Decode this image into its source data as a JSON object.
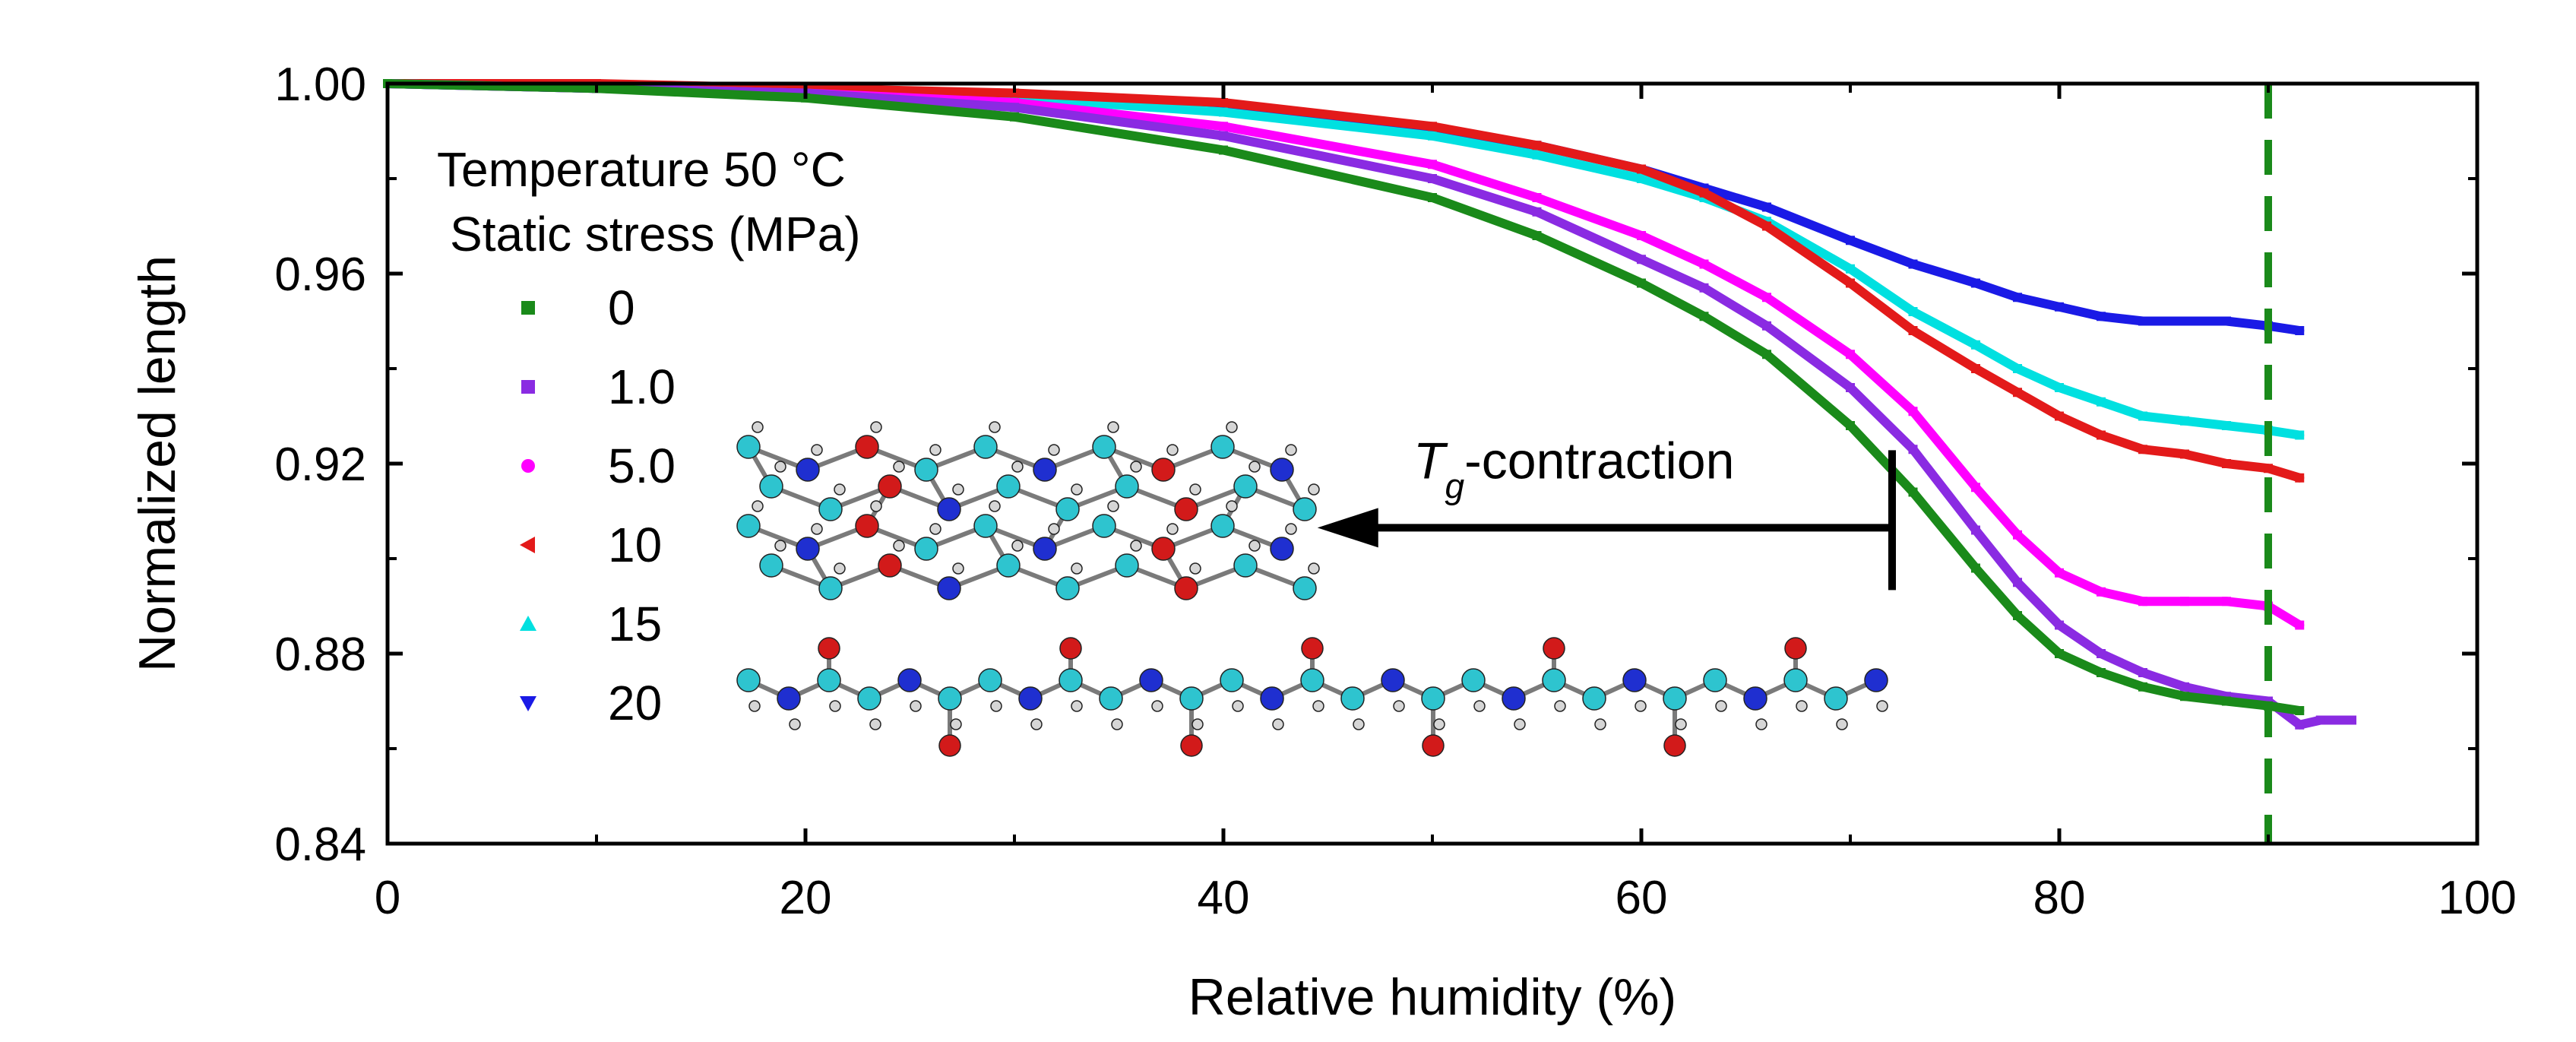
{
  "chart_data": {
    "type": "line",
    "xlabel": "Relative humidity (%)",
    "ylabel": "Normalized length",
    "xlim": [
      0,
      100
    ],
    "ylim": [
      0.84,
      1.0
    ],
    "x_ticks": [
      "0",
      "20",
      "40",
      "60",
      "80",
      "100"
    ],
    "y_ticks": [
      "0.84",
      "0.88",
      "0.92",
      "0.96",
      "1.00"
    ],
    "grid": false,
    "legend_position": "top-left",
    "legend_title_line1": "Temperature 50 °C",
    "legend_title_line2": "Static stress (MPa)",
    "series": [
      {
        "name": "0",
        "color": "#1a8a1a",
        "marker": "square",
        "x": [
          0,
          10,
          20,
          30,
          40,
          50,
          55,
          60,
          63,
          66,
          70,
          73,
          76,
          78,
          80,
          82,
          84,
          86,
          88,
          90,
          91.5
        ],
        "y": [
          1.0,
          0.999,
          0.997,
          0.993,
          0.986,
          0.976,
          0.968,
          0.958,
          0.951,
          0.943,
          0.928,
          0.914,
          0.898,
          0.888,
          0.88,
          0.876,
          0.873,
          0.871,
          0.87,
          0.869,
          0.868
        ]
      },
      {
        "name": "1.0",
        "color": "#8a2be2",
        "marker": "square",
        "x": [
          0,
          10,
          20,
          30,
          40,
          50,
          55,
          60,
          63,
          66,
          70,
          73,
          76,
          78,
          80,
          82,
          84,
          86,
          88,
          90,
          91.5,
          92.5,
          94
        ],
        "y": [
          1.0,
          0.999,
          0.998,
          0.995,
          0.989,
          0.98,
          0.973,
          0.963,
          0.957,
          0.949,
          0.936,
          0.923,
          0.906,
          0.895,
          0.886,
          0.88,
          0.876,
          0.873,
          0.871,
          0.87,
          0.865,
          0.866,
          0.866
        ]
      },
      {
        "name": "5.0",
        "color": "#ff00ff",
        "marker": "circle",
        "x": [
          0,
          10,
          20,
          30,
          40,
          50,
          55,
          60,
          63,
          66,
          70,
          73,
          76,
          78,
          80,
          82,
          84,
          86,
          88,
          90,
          91.5
        ],
        "y": [
          1.0,
          0.999,
          0.998,
          0.996,
          0.991,
          0.983,
          0.976,
          0.968,
          0.962,
          0.955,
          0.943,
          0.931,
          0.915,
          0.905,
          0.897,
          0.893,
          0.891,
          0.891,
          0.891,
          0.89,
          0.886
        ]
      },
      {
        "name": "10",
        "color": "#e31a1a",
        "marker": "triangle-left",
        "x": [
          0,
          10,
          20,
          30,
          40,
          50,
          55,
          60,
          63,
          66,
          70,
          73,
          76,
          78,
          80,
          82,
          84,
          86,
          88,
          90,
          91.5
        ],
        "y": [
          1.0,
          1.0,
          0.999,
          0.998,
          0.996,
          0.991,
          0.987,
          0.982,
          0.977,
          0.97,
          0.958,
          0.948,
          0.94,
          0.935,
          0.93,
          0.926,
          0.923,
          0.922,
          0.92,
          0.919,
          0.917
        ]
      },
      {
        "name": "15",
        "color": "#00e0e0",
        "marker": "triangle-up",
        "x": [
          0,
          10,
          20,
          30,
          40,
          50,
          55,
          60,
          63,
          66,
          70,
          73,
          76,
          78,
          80,
          82,
          84,
          86,
          88,
          90,
          91.5
        ],
        "y": [
          1.0,
          0.999,
          0.998,
          0.997,
          0.994,
          0.989,
          0.985,
          0.98,
          0.976,
          0.971,
          0.961,
          0.952,
          0.945,
          0.94,
          0.936,
          0.933,
          0.93,
          0.929,
          0.928,
          0.927,
          0.926
        ]
      },
      {
        "name": "20",
        "color": "#1a1ae6",
        "marker": "triangle-down",
        "x": [
          0,
          10,
          20,
          30,
          40,
          50,
          55,
          60,
          63,
          66,
          70,
          73,
          76,
          78,
          80,
          82,
          84,
          86,
          88,
          90,
          91.5
        ],
        "y": [
          1.0,
          0.999,
          0.998,
          0.997,
          0.995,
          0.99,
          0.987,
          0.982,
          0.978,
          0.974,
          0.967,
          0.962,
          0.958,
          0.955,
          0.953,
          0.951,
          0.95,
          0.95,
          0.95,
          0.949,
          0.948
        ]
      }
    ],
    "reference_line": {
      "x": 90,
      "color": "#1a8a1a",
      "style": "dashed"
    },
    "annotation": {
      "label_symbol": "T",
      "label_subscript": "g",
      "label_rest": "-contraction",
      "arrow_from_x": 72,
      "arrow_to_x": 44.5,
      "arrow_y": 0.9065
    }
  }
}
